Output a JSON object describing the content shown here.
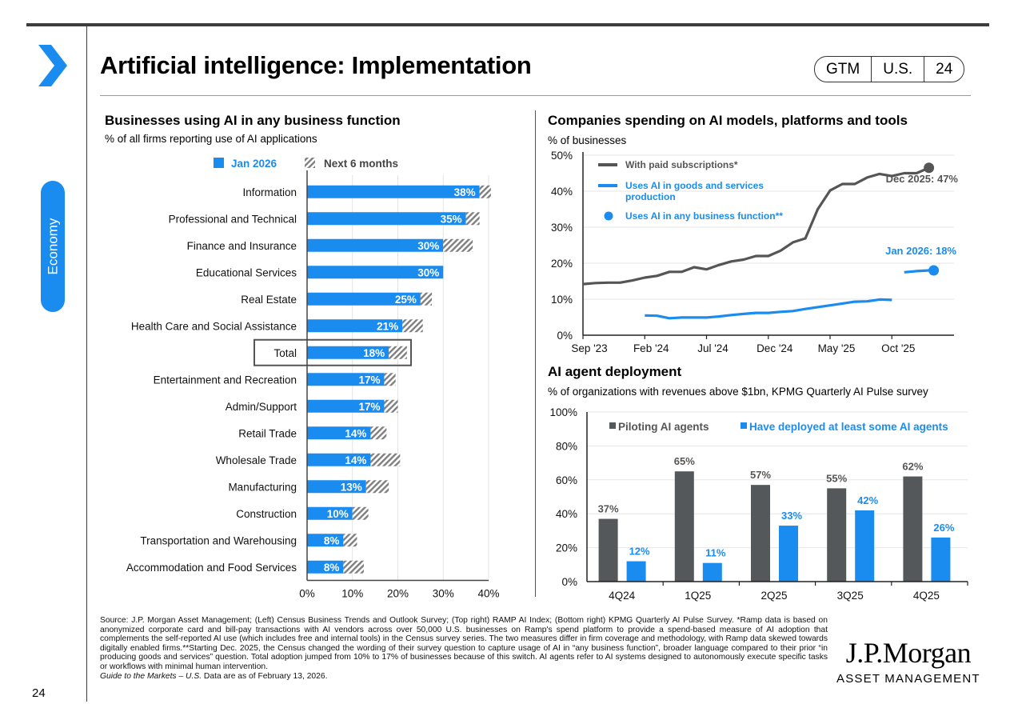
{
  "header": {
    "title": "Artificial intelligence: Implementation",
    "badge": [
      "GTM",
      "U.S.",
      "24"
    ],
    "section_tab": "Economy",
    "accent_color": "#1a8cf0"
  },
  "page_number": "24",
  "logo": {
    "name": "J.P.Morgan",
    "sub": "ASSET MANAGEMENT"
  },
  "footnote": {
    "lines": [
      "Source: J.P. Morgan Asset Management; (Left) Census Business Trends and Outlook Survey; (Top right) RAMP AI Index; (Bottom right) KPMG Quarterly AI Pulse Survey. *Ramp data is based on anonymized corporate card and bill-pay transactions with AI vendors across over 50,000 U.S. businesses on Ramp's spend platform to provide a spend-based measure of AI adoption that complements the self-reported AI use (which includes free and internal tools) in the Census survey series. The two measures differ in firm coverage and methodology, with Ramp data skewed towards digitally enabled firms.**Starting Dec. 2025, the Census changed the wording of their survey question to capture usage of AI in “any business function”, broader language compared to their prior “in producing goods and services” question. Total adoption jumped from 10% to 17% of businesses because of this switch. AI agents refer to AI systems designed to autonomously execute specific tasks or workflows with minimal human intervention."
    ],
    "guide_italic": "Guide to the Markets – U.S.",
    "guide_rest": " Data are as of February 13, 2026."
  },
  "chart_data": [
    {
      "type": "bar",
      "orientation": "horizontal",
      "stacked": true,
      "title": "Businesses using AI in any business function",
      "subtitle": "% of all firms reporting use of AI applications",
      "categories": [
        "Information",
        "Professional and Technical",
        "Finance and Insurance",
        "Educational Services",
        "Real Estate",
        "Health Care and Social Assistance",
        "Total",
        "Entertainment and Recreation",
        "Admin/Support",
        "Retail Trade",
        "Wholesale Trade",
        "Manufacturing",
        "Construction",
        "Transportation and Warehousing",
        "Accommodation and Food Services"
      ],
      "highlighted_category": "Total",
      "series": [
        {
          "name": "Jan 2026",
          "color": "#1a8cf0",
          "values": [
            38,
            35,
            30,
            30,
            25,
            21,
            18,
            17,
            17,
            14,
            14,
            13,
            10,
            8,
            8
          ],
          "labels": [
            "38%",
            "35%",
            "30%",
            "30%",
            "25%",
            "21%",
            "18%",
            "17%",
            "17%",
            "14%",
            "14%",
            "13%",
            "10%",
            "8%",
            "8%"
          ]
        },
        {
          "name": "Next 6 months",
          "color": "#7f7f7f",
          "pattern": "hatched",
          "values": [
            2.5,
            3,
            6.5,
            0,
            2.5,
            4.5,
            4,
            2.5,
            3,
            3.5,
            6.5,
            5,
            3.5,
            3,
            4.5
          ]
        }
      ],
      "xlim": [
        0,
        40
      ],
      "xticks": [
        "0%",
        "10%",
        "20%",
        "30%",
        "40%"
      ],
      "grid": true,
      "legend": "top"
    },
    {
      "type": "line",
      "title": "Companies spending on AI models, platforms and tools",
      "ylabel": "% of businesses",
      "ylim": [
        0,
        50
      ],
      "yticks": [
        "0%",
        "10%",
        "20%",
        "30%",
        "40%",
        "50%"
      ],
      "xticks": [
        "Sep '23",
        "Feb '24",
        "Jul '24",
        "Dec '24",
        "May '25",
        "Oct '25"
      ],
      "x_start": "Sep 2023",
      "legend": "top-left",
      "series": [
        {
          "name": "With paid subscriptions*",
          "color": "#555555",
          "start_month": 0,
          "values": [
            14.2,
            14.5,
            14.6,
            14.6,
            15.2,
            16.0,
            16.5,
            17.6,
            17.6,
            18.9,
            18.3,
            19.5,
            20.5,
            21.0,
            22.0,
            22.0,
            23.5,
            25.8,
            26.9,
            35.0,
            40.2,
            42.0,
            42.0,
            43.8,
            44.8,
            44.2,
            45.0,
            45.0,
            46.5
          ],
          "end_label": "Dec 2025: 47%"
        },
        {
          "name": "Uses AI in goods and services production",
          "color": "#1a8cf0",
          "start_month": 5,
          "values": [
            5.5,
            5.4,
            4.7,
            4.9,
            4.9,
            4.9,
            5.2,
            5.6,
            5.9,
            6.2,
            6.2,
            6.5,
            6.7,
            7.3,
            7.8,
            8.3,
            8.8,
            9.3,
            9.4,
            9.9,
            9.8
          ]
        },
        {
          "name": "Uses AI in any business function**",
          "color": "#1a8cf0",
          "start_month": 26,
          "values": [
            17.5,
            17.8,
            18.0
          ],
          "marker": "dot",
          "end_label": "Jan 2026: 18%"
        }
      ]
    },
    {
      "type": "bar",
      "title": "AI agent deployment",
      "subtitle": "% of organizations with revenues above $1bn, KPMG Quarterly AI Pulse survey",
      "categories": [
        "4Q24",
        "1Q25",
        "2Q25",
        "3Q25",
        "4Q25"
      ],
      "series": [
        {
          "name": "Piloting AI agents",
          "color": "#54585a",
          "values": [
            37,
            65,
            57,
            55,
            62
          ],
          "labels": [
            "37%",
            "65%",
            "57%",
            "55%",
            "62%"
          ]
        },
        {
          "name": "Have deployed at least some AI agents",
          "color": "#1a8cf0",
          "values": [
            12,
            11,
            33,
            42,
            26
          ],
          "labels": [
            "12%",
            "11%",
            "33%",
            "42%",
            "26%"
          ]
        }
      ],
      "ylim": [
        0,
        100
      ],
      "yticks": [
        "0%",
        "20%",
        "40%",
        "60%",
        "80%",
        "100%"
      ],
      "grid": true,
      "legend": "top"
    }
  ]
}
